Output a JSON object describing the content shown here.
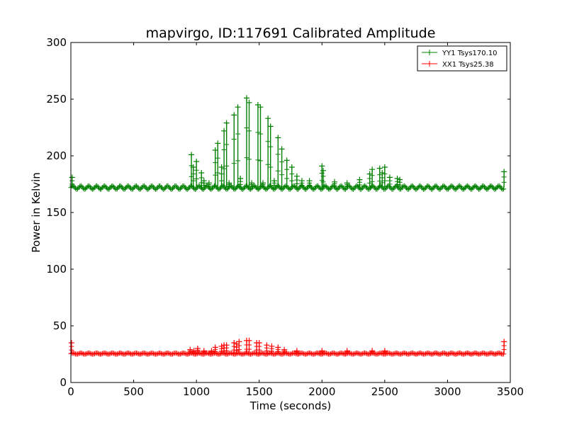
{
  "chart_data": {
    "type": "line",
    "title": "mapvirgo, ID:117691 Calibrated Amplitude",
    "xlabel": "Time (seconds)",
    "ylabel": "Power in Kelvin",
    "xlim": [
      0,
      3500
    ],
    "ylim": [
      0,
      300
    ],
    "xticks": [
      0,
      500,
      1000,
      1500,
      2000,
      2500,
      3000,
      3500
    ],
    "yticks": [
      0,
      50,
      100,
      150,
      200,
      250,
      300
    ],
    "grid": false,
    "legend_position": "top-right",
    "series": [
      {
        "name": "YY1 Tsys170.10",
        "color": "#008000",
        "marker": "+",
        "baseline": 172,
        "peaks": [
          [
            10,
            181
          ],
          [
            960,
            201
          ],
          [
            975,
            190
          ],
          [
            1000,
            195
          ],
          [
            1040,
            185
          ],
          [
            1060,
            178
          ],
          [
            1100,
            176
          ],
          [
            1150,
            205
          ],
          [
            1170,
            211
          ],
          [
            1200,
            190
          ],
          [
            1220,
            222
          ],
          [
            1240,
            229
          ],
          [
            1260,
            176
          ],
          [
            1300,
            236
          ],
          [
            1330,
            243
          ],
          [
            1350,
            180
          ],
          [
            1400,
            251
          ],
          [
            1420,
            247
          ],
          [
            1440,
            176
          ],
          [
            1490,
            245
          ],
          [
            1510,
            243
          ],
          [
            1530,
            176
          ],
          [
            1570,
            233
          ],
          [
            1590,
            226
          ],
          [
            1620,
            178
          ],
          [
            1650,
            216
          ],
          [
            1680,
            206
          ],
          [
            1720,
            196
          ],
          [
            1760,
            190
          ],
          [
            1800,
            182
          ],
          [
            1840,
            178
          ],
          [
            1900,
            178
          ],
          [
            2000,
            191
          ],
          [
            2010,
            187
          ],
          [
            2100,
            177
          ],
          [
            2200,
            176
          ],
          [
            2300,
            179
          ],
          [
            2380,
            184
          ],
          [
            2400,
            188
          ],
          [
            2460,
            189
          ],
          [
            2480,
            185
          ],
          [
            2500,
            190
          ],
          [
            2540,
            181
          ],
          [
            2600,
            180
          ],
          [
            2620,
            179
          ],
          [
            3450,
            186
          ]
        ]
      },
      {
        "name": "XX1 Tsys25.38",
        "color": "#ff0000",
        "marker": "+",
        "baseline": 25.5,
        "peaks": [
          [
            5,
            35
          ],
          [
            950,
            29
          ],
          [
            980,
            28
          ],
          [
            1010,
            30
          ],
          [
            1060,
            28
          ],
          [
            1120,
            28
          ],
          [
            1150,
            31
          ],
          [
            1200,
            32
          ],
          [
            1220,
            33
          ],
          [
            1240,
            33
          ],
          [
            1300,
            35
          ],
          [
            1320,
            34
          ],
          [
            1340,
            36
          ],
          [
            1400,
            37
          ],
          [
            1420,
            37
          ],
          [
            1480,
            35
          ],
          [
            1500,
            35
          ],
          [
            1560,
            33
          ],
          [
            1600,
            32
          ],
          [
            1650,
            31
          ],
          [
            1700,
            29
          ],
          [
            1800,
            28
          ],
          [
            2000,
            28
          ],
          [
            2200,
            28
          ],
          [
            2400,
            28
          ],
          [
            2500,
            28
          ],
          [
            3450,
            36
          ]
        ]
      }
    ]
  }
}
